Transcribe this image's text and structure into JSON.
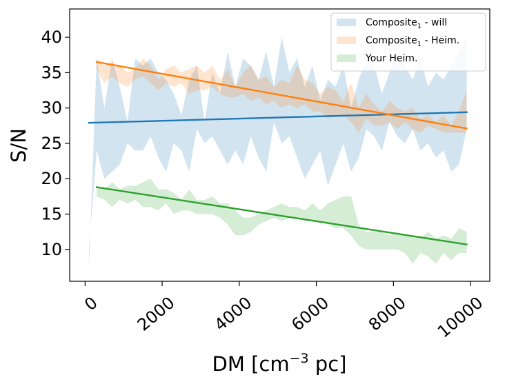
{
  "chart_data": {
    "type": "area",
    "title": "",
    "xlabel": "DM [cm$^{-3}$ pc]",
    "xlabel_parts": {
      "main": "DM [cm",
      "sup": "−3",
      "tail": " pc]"
    },
    "ylabel": "S/N",
    "xlim": [
      -400,
      10500
    ],
    "ylim": [
      5.5,
      44
    ],
    "x_ticks": [
      0,
      2000,
      4000,
      6000,
      8000,
      10000
    ],
    "x_tick_labels": [
      "0",
      "2000",
      "4000",
      "6000",
      "8000",
      "10000"
    ],
    "y_ticks": [
      10,
      15,
      20,
      25,
      30,
      35,
      40
    ],
    "y_tick_labels": [
      "10",
      "15",
      "20",
      "25",
      "30",
      "35",
      "40"
    ],
    "legend_position": "top-right",
    "series": [
      {
        "name": "Composite",
        "name_sub": "1",
        "name_tail": " - will",
        "color": "#1f77b4",
        "band_x": [
          100,
          300,
          500,
          700,
          900,
          1100,
          1300,
          1500,
          1700,
          1900,
          2100,
          2300,
          2500,
          2700,
          2900,
          3100,
          3300,
          3500,
          3700,
          3900,
          4100,
          4300,
          4500,
          4700,
          4900,
          5100,
          5300,
          5500,
          5700,
          5900,
          6100,
          6300,
          6500,
          6700,
          6900,
          7100,
          7300,
          7500,
          7700,
          7900,
          8100,
          8300,
          8500,
          8700,
          8900,
          9100,
          9300,
          9500,
          9700,
          9900
        ],
        "band_upper": [
          7.0,
          37.0,
          30.0,
          37.0,
          33.0,
          28.0,
          37.0,
          36.0,
          37.0,
          35.0,
          34.0,
          32.0,
          29.0,
          34.0,
          36.0,
          28.0,
          35.0,
          32.0,
          38.0,
          33.0,
          37.0,
          36.0,
          34.0,
          38.0,
          33.0,
          40.0,
          35.0,
          37.0,
          33.0,
          36.0,
          31.0,
          34.0,
          33.0,
          36.0,
          30.0,
          34.0,
          37.0,
          36.0,
          32.0,
          35.0,
          38.0,
          36.0,
          34.0,
          37.0,
          33.0,
          35.0,
          34.0,
          36.0,
          38.0,
          40.0
        ],
        "band_lower": [
          10.0,
          24.0,
          20.0,
          21.0,
          22.0,
          25.0,
          24.0,
          24.0,
          26.0,
          23.0,
          21.0,
          25.0,
          24.0,
          21.0,
          27.0,
          25.0,
          26.0,
          24.0,
          22.0,
          24.0,
          22.0,
          26.0,
          23.0,
          21.0,
          28.0,
          25.0,
          26.0,
          23.0,
          20.0,
          22.0,
          24.0,
          19.0,
          22.0,
          25.0,
          21.0,
          23.0,
          27.0,
          26.0,
          24.0,
          28.0,
          26.0,
          25.0,
          27.0,
          24.0,
          25.0,
          23.0,
          24.0,
          21.0,
          22.0,
          27.0
        ],
        "fit": {
          "x": [
            100,
            9900
          ],
          "y": [
            27.9,
            29.4
          ]
        }
      },
      {
        "name": "Composite",
        "name_sub": "1",
        "name_tail": " - Heim.",
        "color": "#ff7f0e",
        "band_x": [
          300,
          500,
          700,
          900,
          1100,
          1300,
          1500,
          1700,
          1900,
          2100,
          2300,
          2500,
          2700,
          2900,
          3100,
          3300,
          3500,
          3700,
          3900,
          4100,
          4300,
          4500,
          4700,
          4900,
          5100,
          5300,
          5500,
          5700,
          5900,
          6100,
          6300,
          6500,
          6700,
          6900,
          7100,
          7300,
          7500,
          7700,
          7900,
          8100,
          8300,
          8500,
          8700,
          8900,
          9100,
          9300,
          9500,
          9700,
          9900
        ],
        "band_upper": [
          37.0,
          36.0,
          36.5,
          36.0,
          35.0,
          35.5,
          37.0,
          36.0,
          34.0,
          35.5,
          36.0,
          35.0,
          35.5,
          36.0,
          35.0,
          36.0,
          34.0,
          35.5,
          33.0,
          35.0,
          36.0,
          34.0,
          34.5,
          33.0,
          34.0,
          33.5,
          36.0,
          34.0,
          33.5,
          32.0,
          33.0,
          32.5,
          31.0,
          33.5,
          30.0,
          32.0,
          30.5,
          29.5,
          31.0,
          30.0,
          29.5,
          30.0,
          28.5,
          29.0,
          28.0,
          29.0,
          27.5,
          29.5,
          32.5
        ],
        "band_lower": [
          35.5,
          33.5,
          34.5,
          33.5,
          33.0,
          34.0,
          34.5,
          33.5,
          32.5,
          33.5,
          33.0,
          33.5,
          32.0,
          32.5,
          32.5,
          33.0,
          32.0,
          31.5,
          31.5,
          32.0,
          31.0,
          31.5,
          30.5,
          31.0,
          30.0,
          30.5,
          30.0,
          30.5,
          29.5,
          29.5,
          28.5,
          29.0,
          29.0,
          28.0,
          26.5,
          28.5,
          27.5,
          27.5,
          28.0,
          27.0,
          28.0,
          27.0,
          26.5,
          27.5,
          27.0,
          26.5,
          26.5,
          26.5,
          26.5
        ],
        "fit": {
          "x": [
            300,
            9900
          ],
          "y": [
            36.5,
            27.1
          ]
        }
      },
      {
        "name": "Your Heim.",
        "name_sub": "",
        "name_tail": "",
        "color": "#2ca02c",
        "band_x": [
          300,
          500,
          700,
          900,
          1100,
          1300,
          1500,
          1700,
          1900,
          2100,
          2300,
          2500,
          2700,
          2900,
          3100,
          3300,
          3500,
          3700,
          3900,
          4100,
          4300,
          4500,
          4700,
          4900,
          5100,
          5300,
          5500,
          5700,
          5900,
          6100,
          6300,
          6500,
          6700,
          6900,
          7100,
          7300,
          7500,
          7700,
          7900,
          8100,
          8300,
          8500,
          8700,
          8900,
          9100,
          9300,
          9500,
          9700,
          9900
        ],
        "band_upper": [
          19.0,
          18.5,
          19.5,
          18.5,
          19.0,
          19.0,
          19.5,
          20.0,
          18.5,
          18.5,
          18.0,
          17.0,
          18.5,
          17.0,
          17.0,
          17.5,
          16.5,
          16.5,
          15.5,
          14.5,
          14.5,
          15.0,
          15.5,
          16.0,
          16.5,
          16.0,
          16.0,
          15.5,
          16.5,
          15.5,
          16.5,
          17.0,
          17.5,
          17.5,
          13.5,
          12.5,
          12.5,
          12.5,
          12.0,
          12.5,
          12.0,
          12.0,
          11.5,
          12.5,
          11.5,
          12.0,
          11.5,
          13.0,
          12.5
        ],
        "band_lower": [
          17.5,
          17.0,
          16.0,
          17.0,
          16.5,
          17.0,
          16.0,
          16.0,
          15.5,
          16.5,
          15.0,
          15.5,
          15.5,
          15.0,
          15.0,
          15.0,
          14.5,
          13.5,
          12.0,
          12.0,
          12.5,
          13.5,
          14.0,
          14.5,
          14.0,
          14.5,
          14.5,
          14.0,
          14.0,
          14.0,
          13.5,
          13.0,
          13.0,
          12.0,
          10.5,
          10.0,
          10.0,
          10.0,
          10.0,
          10.0,
          9.5,
          8.0,
          9.5,
          9.0,
          8.0,
          9.5,
          8.5,
          9.5,
          9.5
        ],
        "fit": {
          "x": [
            300,
            9900
          ],
          "y": [
            18.8,
            10.7
          ]
        }
      }
    ]
  }
}
